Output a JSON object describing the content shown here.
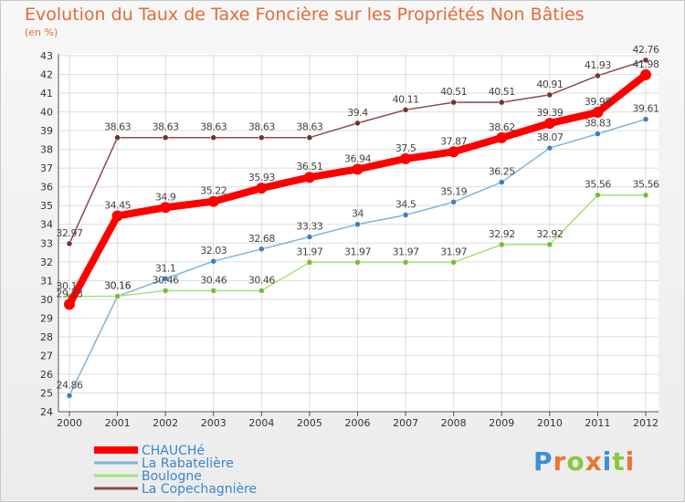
{
  "title": "Evolution du Taux de Taxe Foncière sur les Propriétés Non Bâties",
  "subtitle": "(en %)",
  "brand": "Proxiti",
  "brand_colors": [
    "#3a8fd8",
    "#e8762d",
    "#8cc63f",
    "#e8762d",
    "#3a8fd8",
    "#8cc63f",
    "#e8762d"
  ],
  "chart_data": {
    "type": "line",
    "title": "Evolution du Taux de Taxe Foncière sur les Propriétés Non Bâties",
    "ylabel": "(en %)",
    "xlabel": "",
    "x": [
      "2000",
      "2001",
      "2002",
      "2003",
      "2004",
      "2005",
      "2006",
      "2007",
      "2008",
      "2009",
      "2010",
      "2011",
      "2012"
    ],
    "ylim": [
      24,
      43
    ],
    "yticks": [
      "24",
      "25",
      "26",
      "27",
      "28",
      "29",
      "30",
      "31",
      "32",
      "33",
      "34",
      "35",
      "36",
      "37",
      "38",
      "39",
      "40",
      "41",
      "42",
      "43"
    ],
    "grid": true,
    "legend": "bottom-left",
    "series": [
      {
        "name": "CHAUCHé",
        "color": "#ff0000",
        "width": 8,
        "values": [
          29.73,
          34.45,
          34.9,
          35.22,
          35.93,
          36.51,
          36.94,
          37.5,
          37.87,
          38.62,
          39.39,
          39.98,
          41.98
        ],
        "labels": [
          "29.73",
          "34.45",
          "34.9",
          "35.22",
          "35.93",
          "36.51",
          "36.94",
          "37.5",
          "37.87",
          "38.62",
          "39.39",
          "39.98",
          "41.98"
        ]
      },
      {
        "name": "La Rabatelière",
        "color": "#7fb3dc",
        "width": 1.5,
        "marker": "#3a7fc0",
        "values": [
          24.86,
          30.16,
          31.1,
          32.03,
          32.68,
          33.33,
          34.0,
          34.5,
          35.19,
          36.25,
          38.07,
          38.83,
          39.61
        ],
        "labels": [
          "24.86",
          "30.16",
          "31.1",
          "32.03",
          "32.68",
          "33.33",
          "34",
          "34.5",
          "35.19",
          "36.25",
          "38.07",
          "38.83",
          "39.61"
        ]
      },
      {
        "name": "Boulogne",
        "color": "#a6e07a",
        "width": 1.5,
        "marker": "#6cc23a",
        "values": [
          30.15,
          30.16,
          30.46,
          30.46,
          30.46,
          31.97,
          31.97,
          31.97,
          31.97,
          32.92,
          32.92,
          35.56,
          35.56
        ],
        "labels": [
          "30.15",
          "30.16",
          "30.46",
          "30.46",
          "30.46",
          "31.97",
          "31.97",
          "31.97",
          "31.97",
          "32.92",
          "32.92",
          "35.56",
          "35.56"
        ]
      },
      {
        "name": "La Copechagnière",
        "color": "#8b4a4a",
        "width": 1.5,
        "marker": "#7a2f2f",
        "values": [
          32.97,
          38.63,
          38.63,
          38.63,
          38.63,
          38.63,
          39.4,
          40.11,
          40.51,
          40.51,
          40.91,
          41.93,
          42.76
        ],
        "labels": [
          "32.97",
          "38.63",
          "38.63",
          "38.63",
          "38.63",
          "38.63",
          "39.4",
          "40.11",
          "40.51",
          "40.51",
          "40.91",
          "41.93",
          "42.76"
        ]
      }
    ]
  }
}
